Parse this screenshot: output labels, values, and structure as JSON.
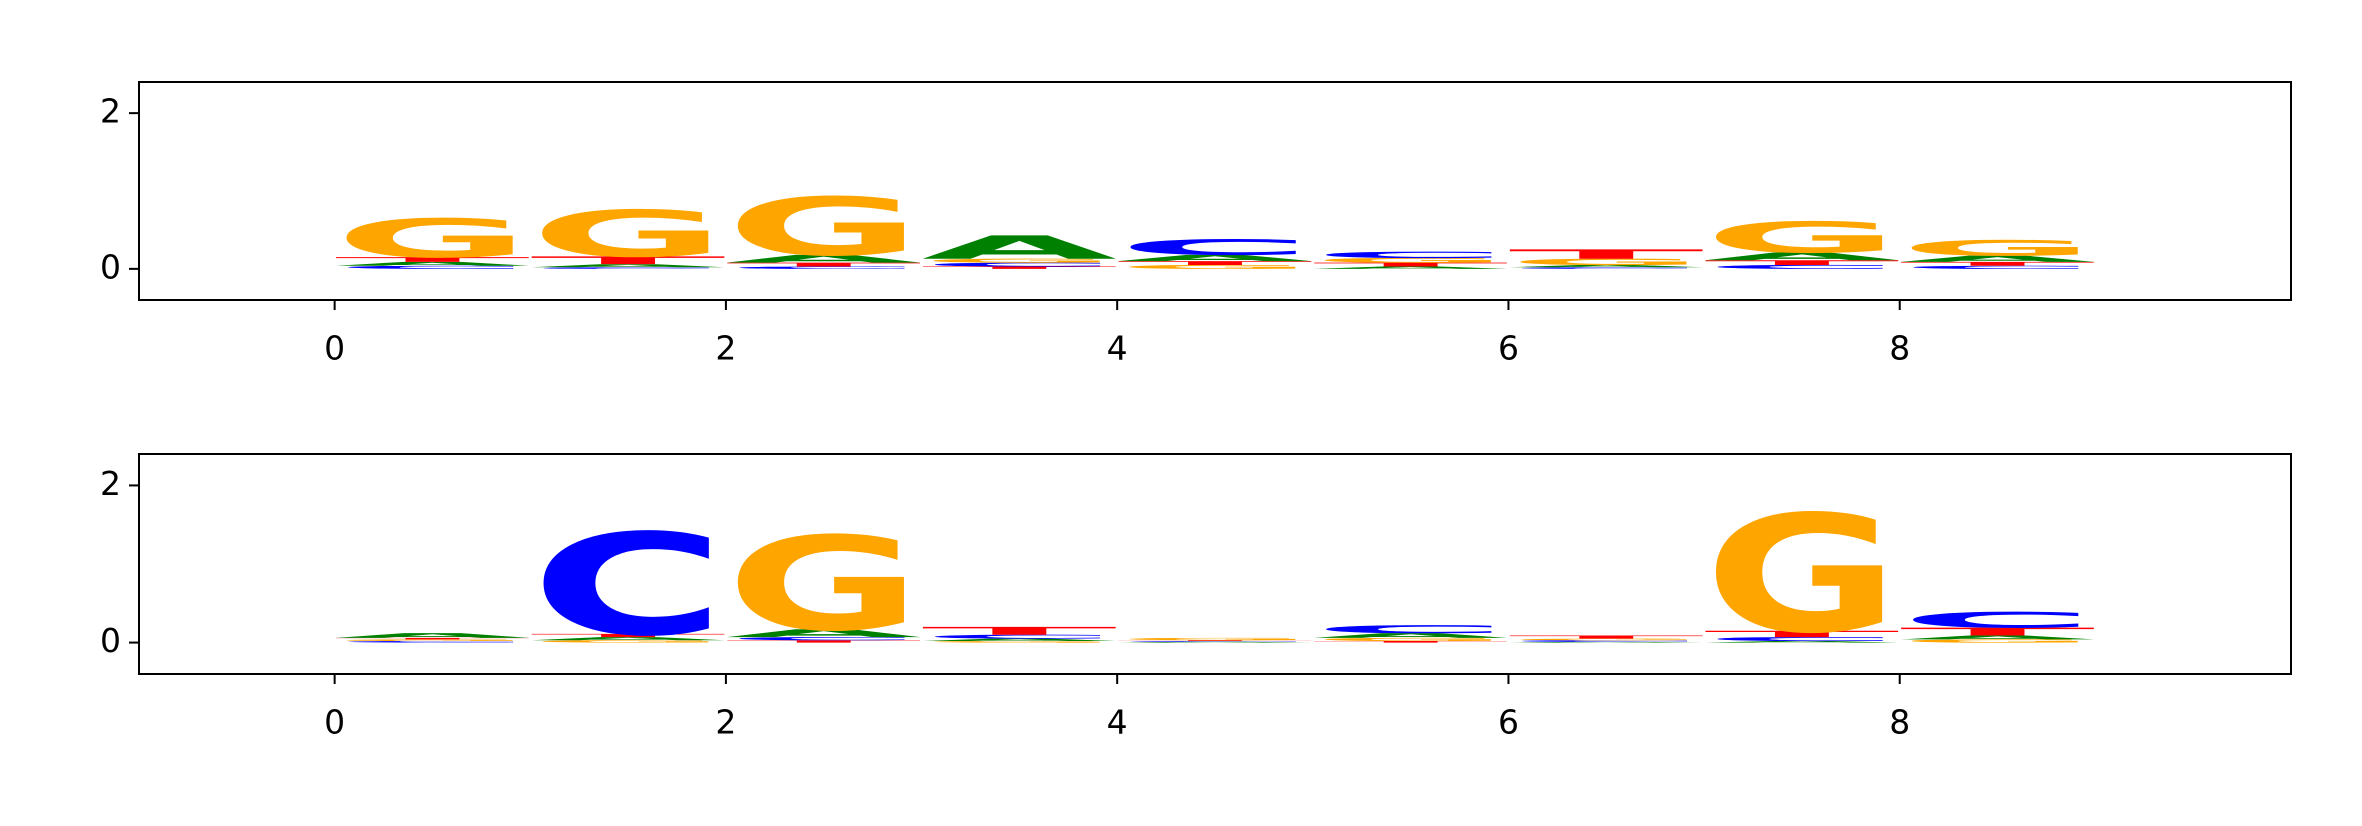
{
  "chart_data": [
    {
      "type": "logo",
      "x": [
        0,
        1,
        2,
        3,
        4,
        5,
        6,
        7,
        8
      ],
      "xlim": [
        -1,
        10
      ],
      "ylim": [
        -0.4,
        2.4
      ],
      "xticks": [
        0,
        2,
        4,
        6,
        8
      ],
      "yticks": [
        0,
        2
      ],
      "series": [
        {
          "name": "A",
          "color": "#008000",
          "values": [
            0.05,
            0.04,
            0.1,
            0.3,
            0.08,
            0.03,
            0.03,
            0.1,
            0.08
          ]
        },
        {
          "name": "C",
          "color": "#0000ff",
          "values": [
            0.04,
            0.02,
            0.03,
            0.05,
            0.2,
            0.08,
            0.02,
            0.05,
            0.04
          ]
        },
        {
          "name": "G",
          "color": "#ffa500",
          "values": [
            0.5,
            0.6,
            0.75,
            0.05,
            0.05,
            0.06,
            0.08,
            0.4,
            0.2
          ]
        },
        {
          "name": "T",
          "color": "#ff0000",
          "values": [
            0.06,
            0.1,
            0.05,
            0.03,
            0.05,
            0.05,
            0.12,
            0.06,
            0.05
          ]
        }
      ]
    },
    {
      "type": "logo",
      "x": [
        0,
        1,
        2,
        3,
        4,
        5,
        6,
        7,
        8
      ],
      "xlim": [
        -1,
        10
      ],
      "ylim": [
        -0.4,
        2.4
      ],
      "xticks": [
        0,
        2,
        4,
        6,
        8
      ],
      "yticks": [
        0,
        2
      ],
      "series": [
        {
          "name": "A",
          "color": "#008000",
          "values": [
            0.06,
            0.04,
            0.1,
            0.03,
            0.01,
            0.06,
            0.01,
            0.02,
            0.05
          ]
        },
        {
          "name": "C",
          "color": "#0000ff",
          "values": [
            0.02,
            1.3,
            0.04,
            0.05,
            0.01,
            0.1,
            0.02,
            0.05,
            0.2
          ]
        },
        {
          "name": "G",
          "color": "#ffa500",
          "values": [
            0.02,
            0.03,
            1.2,
            0.02,
            0.03,
            0.04,
            0.02,
            1.5,
            0.04
          ]
        },
        {
          "name": "T",
          "color": "#ff0000",
          "values": [
            0.02,
            0.04,
            0.03,
            0.1,
            0.01,
            0.02,
            0.04,
            0.08,
            0.1
          ]
        }
      ]
    }
  ]
}
